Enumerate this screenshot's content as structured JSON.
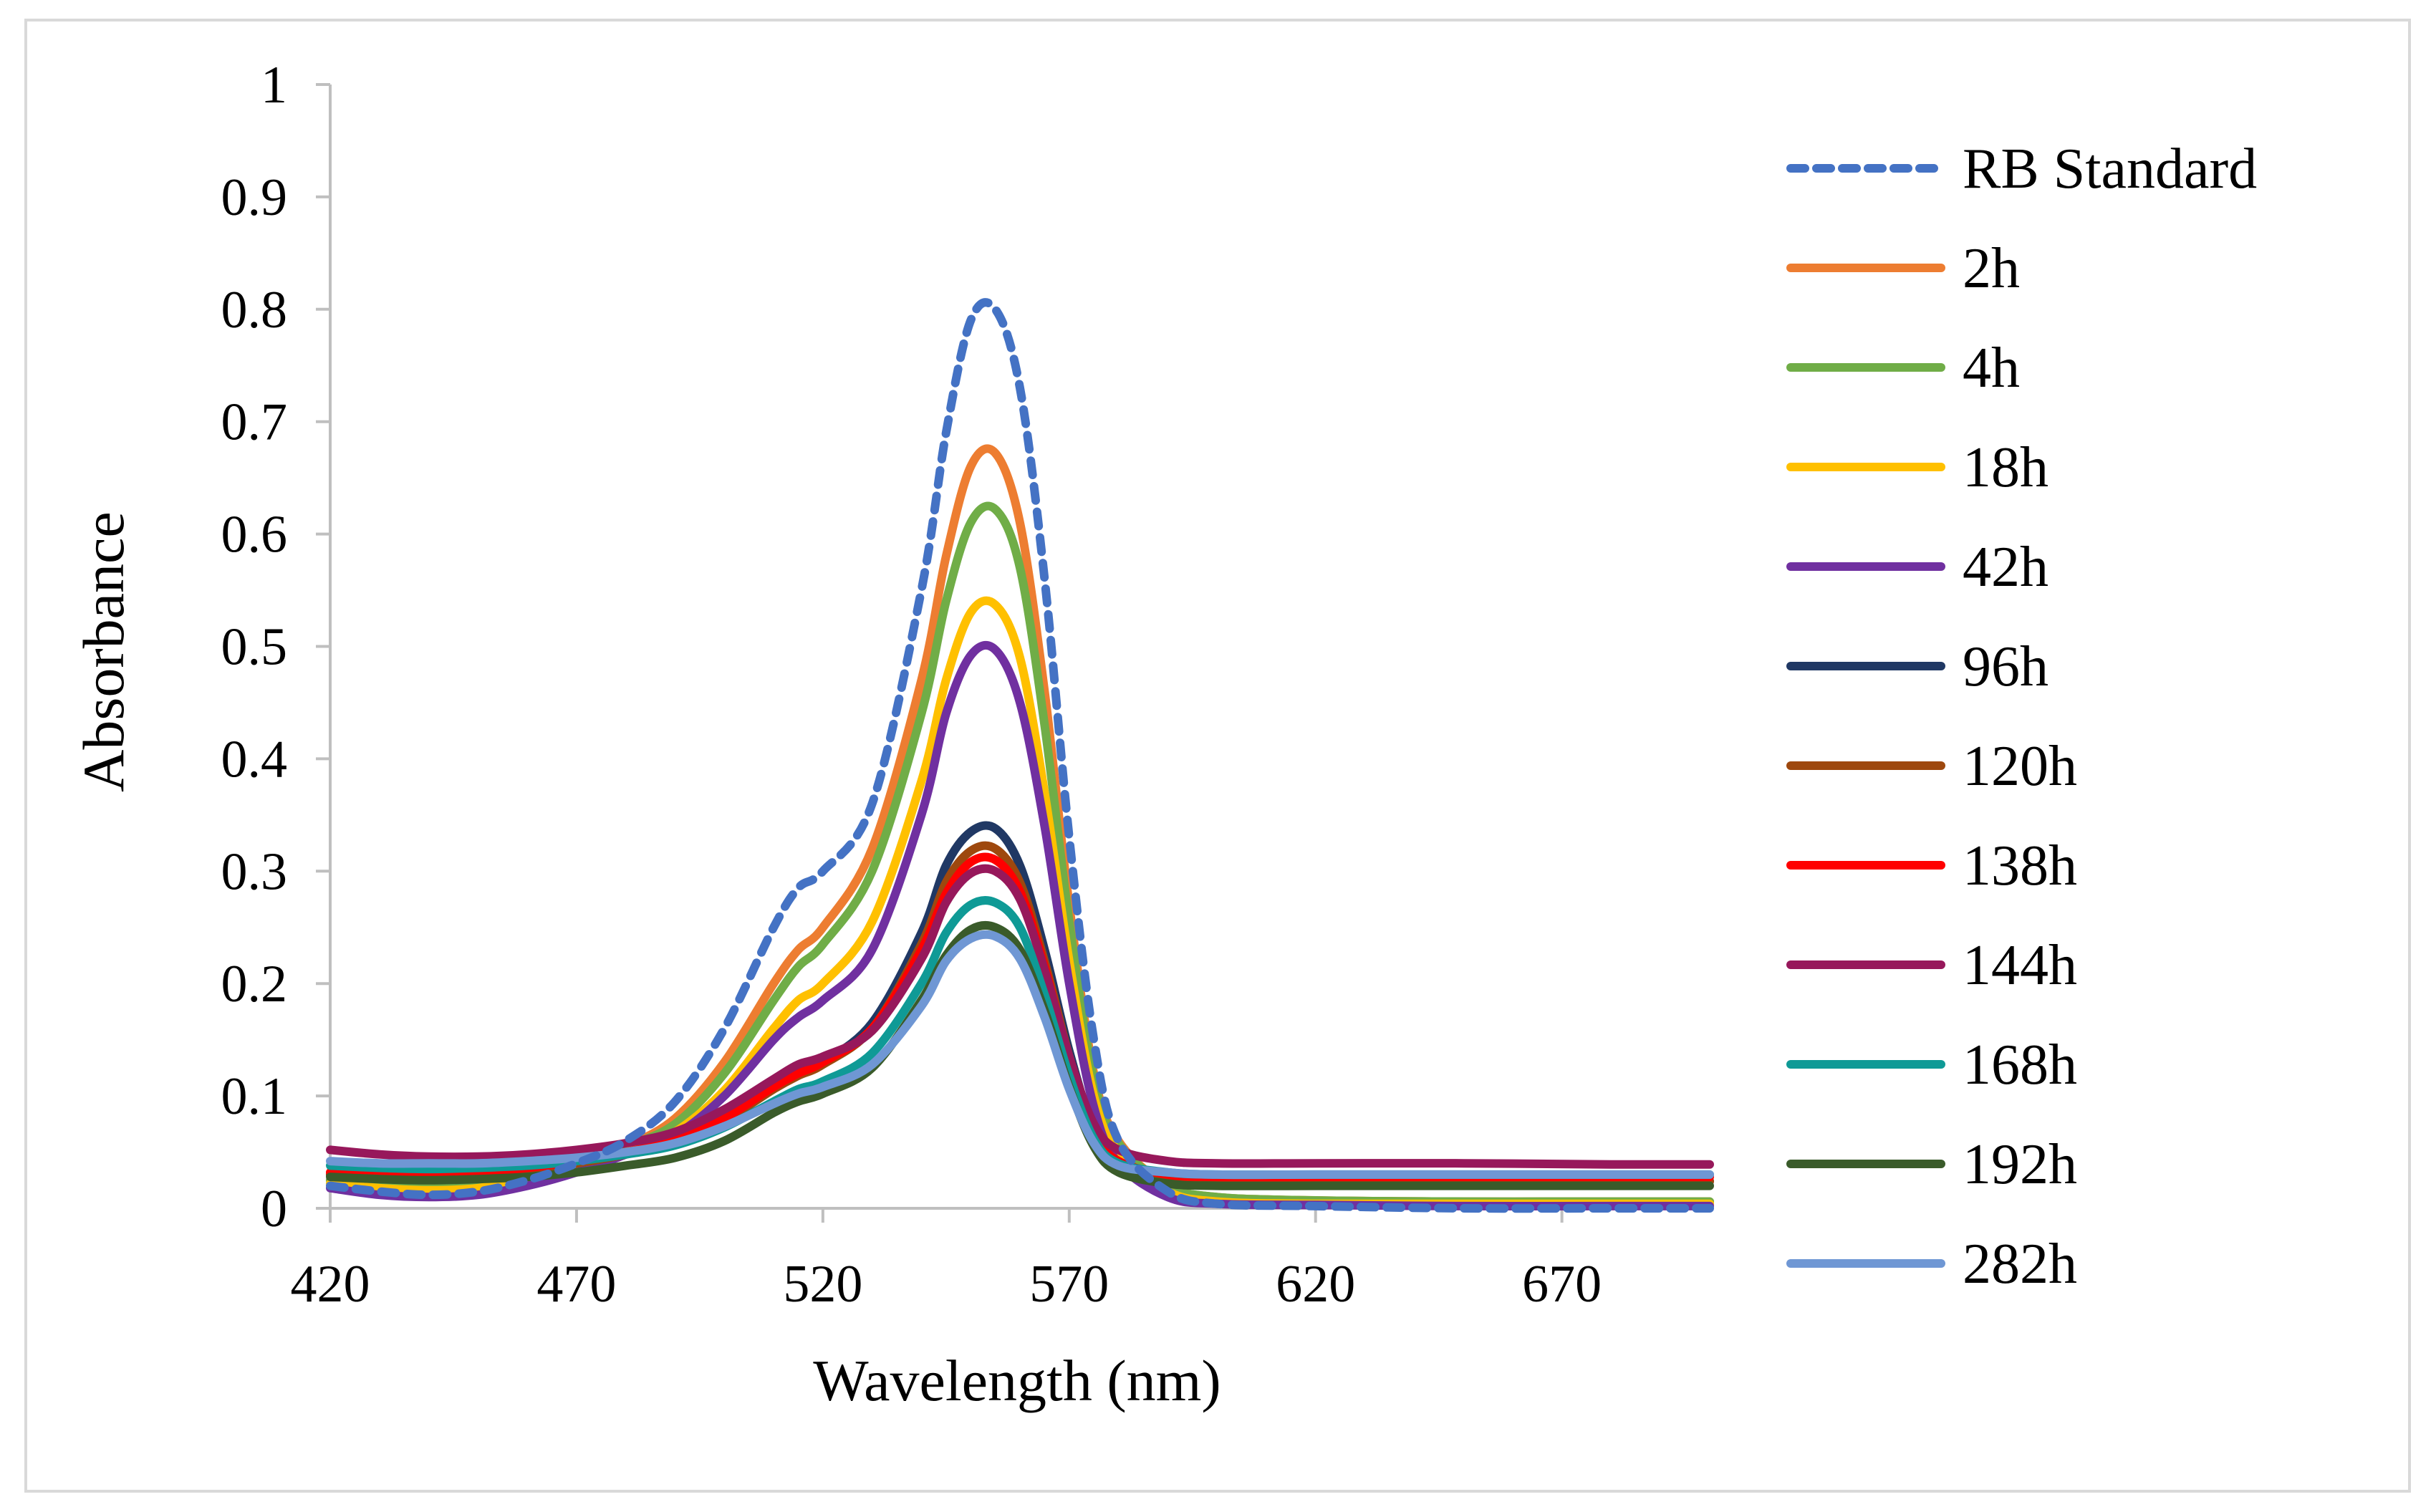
{
  "chart_data": {
    "type": "line",
    "title": "",
    "xlabel": "Wavelength (nm)",
    "ylabel": "Absorbance",
    "xlim": [
      420,
      700
    ],
    "ylim": [
      0,
      1
    ],
    "grid": false,
    "legend_position": "right",
    "x_ticks": [
      420,
      470,
      520,
      570,
      620,
      670
    ],
    "x_tick_labels": [
      "420",
      "470",
      "520",
      "570",
      "620",
      "670"
    ],
    "y_ticks": [
      0,
      0.1,
      0.2,
      0.3,
      0.4,
      0.5,
      0.6,
      0.7,
      0.8,
      0.9,
      1
    ],
    "y_tick_labels": [
      "0",
      "0.1",
      "0.2",
      "0.3",
      "0.4",
      "0.5",
      "0.6",
      "0.7",
      "0.8",
      "0.9",
      "1"
    ],
    "x": [
      420,
      430,
      440,
      450,
      460,
      470,
      480,
      490,
      500,
      510,
      515,
      520,
      530,
      540,
      545,
      550,
      555,
      560,
      565,
      570,
      575,
      580,
      590,
      600,
      620,
      650,
      680,
      700
    ],
    "series": [
      {
        "name": "RB Standard",
        "color": "#4472c4",
        "dash": true,
        "values": [
          0.02,
          0.015,
          0.012,
          0.015,
          0.025,
          0.04,
          0.06,
          0.095,
          0.16,
          0.25,
          0.285,
          0.3,
          0.36,
          0.55,
          0.69,
          0.79,
          0.8,
          0.73,
          0.56,
          0.33,
          0.15,
          0.06,
          0.015,
          0.004,
          0.002,
          0.0,
          0.0,
          0.0
        ]
      },
      {
        "name": "2h",
        "color": "#ed7d31",
        "values": [
          0.025,
          0.022,
          0.02,
          0.022,
          0.03,
          0.04,
          0.055,
          0.08,
          0.13,
          0.2,
          0.23,
          0.25,
          0.32,
          0.47,
          0.58,
          0.66,
          0.672,
          0.61,
          0.46,
          0.27,
          0.12,
          0.06,
          0.02,
          0.01,
          0.007,
          0.006,
          0.006,
          0.006
        ]
      },
      {
        "name": "4h",
        "color": "#70ad47",
        "values": [
          0.025,
          0.022,
          0.02,
          0.022,
          0.03,
          0.04,
          0.055,
          0.075,
          0.12,
          0.185,
          0.215,
          0.235,
          0.3,
          0.44,
          0.54,
          0.61,
          0.622,
          0.57,
          0.43,
          0.255,
          0.115,
          0.058,
          0.02,
          0.01,
          0.007,
          0.006,
          0.006,
          0.006
        ]
      },
      {
        "name": "18h",
        "color": "#ffc000",
        "values": [
          0.022,
          0.018,
          0.016,
          0.018,
          0.026,
          0.036,
          0.05,
          0.068,
          0.105,
          0.16,
          0.185,
          0.2,
          0.255,
          0.38,
          0.47,
          0.53,
          0.537,
          0.49,
          0.37,
          0.22,
          0.1,
          0.05,
          0.015,
          0.006,
          0.004,
          0.004,
          0.004,
          0.004
        ]
      },
      {
        "name": "42h",
        "color": "#7030a0",
        "values": [
          0.018,
          0.012,
          0.01,
          0.012,
          0.02,
          0.032,
          0.048,
          0.065,
          0.1,
          0.15,
          0.17,
          0.185,
          0.23,
          0.35,
          0.44,
          0.492,
          0.497,
          0.45,
          0.34,
          0.2,
          0.09,
          0.04,
          0.01,
          0.004,
          0.003,
          0.002,
          0.002,
          0.002
        ]
      },
      {
        "name": "96h",
        "color": "#203864",
        "values": [
          0.03,
          0.028,
          0.028,
          0.03,
          0.034,
          0.04,
          0.048,
          0.058,
          0.078,
          0.108,
          0.12,
          0.13,
          0.165,
          0.245,
          0.305,
          0.335,
          0.338,
          0.305,
          0.23,
          0.14,
          0.07,
          0.04,
          0.026,
          0.024,
          0.024,
          0.024,
          0.024,
          0.024
        ]
      },
      {
        "name": "120h",
        "color": "#9e480e",
        "values": [
          0.03,
          0.028,
          0.028,
          0.03,
          0.034,
          0.04,
          0.048,
          0.058,
          0.078,
          0.106,
          0.118,
          0.128,
          0.16,
          0.235,
          0.29,
          0.318,
          0.32,
          0.29,
          0.22,
          0.135,
          0.068,
          0.04,
          0.026,
          0.024,
          0.024,
          0.024,
          0.024,
          0.024
        ]
      },
      {
        "name": "138h",
        "color": "#ff0000",
        "values": [
          0.032,
          0.03,
          0.03,
          0.032,
          0.036,
          0.042,
          0.05,
          0.06,
          0.08,
          0.108,
          0.12,
          0.13,
          0.16,
          0.23,
          0.28,
          0.308,
          0.31,
          0.282,
          0.215,
          0.132,
          0.068,
          0.042,
          0.03,
          0.028,
          0.028,
          0.028,
          0.028,
          0.028
        ]
      },
      {
        "name": "144h",
        "color": "#97185b",
        "values": [
          0.052,
          0.048,
          0.046,
          0.046,
          0.048,
          0.052,
          0.058,
          0.068,
          0.088,
          0.115,
          0.128,
          0.135,
          0.158,
          0.222,
          0.272,
          0.298,
          0.3,
          0.275,
          0.212,
          0.135,
          0.075,
          0.052,
          0.042,
          0.04,
          0.04,
          0.04,
          0.039,
          0.039
        ]
      },
      {
        "name": "168h",
        "color": "#0f9a96",
        "values": [
          0.038,
          0.036,
          0.035,
          0.036,
          0.038,
          0.042,
          0.048,
          0.056,
          0.072,
          0.095,
          0.106,
          0.113,
          0.138,
          0.2,
          0.245,
          0.27,
          0.272,
          0.25,
          0.19,
          0.118,
          0.062,
          0.04,
          0.032,
          0.03,
          0.03,
          0.03,
          0.03,
          0.03
        ]
      },
      {
        "name": "192h",
        "color": "#3a5b2a",
        "values": [
          0.028,
          0.026,
          0.025,
          0.026,
          0.028,
          0.032,
          0.038,
          0.045,
          0.06,
          0.085,
          0.095,
          0.102,
          0.125,
          0.185,
          0.225,
          0.248,
          0.25,
          0.23,
          0.176,
          0.108,
          0.055,
          0.032,
          0.022,
          0.02,
          0.02,
          0.02,
          0.02,
          0.02
        ]
      },
      {
        "name": "282h",
        "color": "#6f97d4",
        "values": [
          0.042,
          0.04,
          0.04,
          0.04,
          0.042,
          0.045,
          0.05,
          0.058,
          0.073,
          0.093,
          0.102,
          0.108,
          0.128,
          0.18,
          0.22,
          0.24,
          0.242,
          0.222,
          0.17,
          0.106,
          0.058,
          0.038,
          0.032,
          0.03,
          0.03,
          0.03,
          0.03,
          0.03
        ]
      }
    ]
  }
}
